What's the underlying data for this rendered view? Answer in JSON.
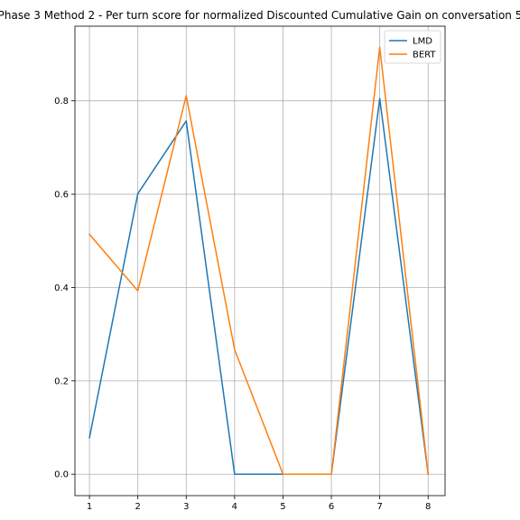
{
  "chart_data": {
    "type": "line",
    "title": "Phase 3 Method 2 - Per turn score for normalized Discounted Cumulative Gain on conversation 5",
    "xlabel": "",
    "ylabel": "",
    "x": [
      1,
      2,
      3,
      4,
      5,
      6,
      7,
      8
    ],
    "xlim": [
      0.7,
      8.35
    ],
    "ylim": [
      -0.046,
      0.96
    ],
    "xticks": [
      1,
      2,
      3,
      4,
      5,
      6,
      7,
      8
    ],
    "yticks": [
      0.0,
      0.2,
      0.4,
      0.6,
      0.8
    ],
    "ytick_labels": [
      "0.0",
      "0.2",
      "0.4",
      "0.6",
      "0.8"
    ],
    "grid": true,
    "legend_position": "top-right",
    "series": [
      {
        "name": "LMD",
        "color": "#1f77b4",
        "values": [
          0.078,
          0.601,
          0.757,
          0.0,
          0.0,
          0.0,
          0.805,
          0.0
        ]
      },
      {
        "name": "BERT",
        "color": "#ff7f0e",
        "values": [
          0.514,
          0.393,
          0.811,
          0.267,
          0.0,
          0.0,
          0.915,
          0.0
        ]
      }
    ]
  }
}
